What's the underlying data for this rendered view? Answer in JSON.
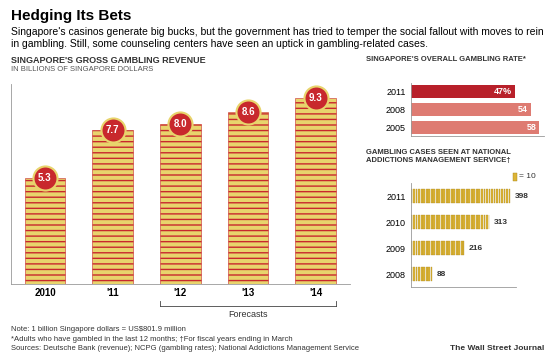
{
  "title": "Hedging Its Bets",
  "subtitle": "Singapore's casinos generate big bucks, but the government has tried to temper the social fallout with moves to rein in gambling. Still, some counseling centers have seen an uptick in gambling-related cases.",
  "notes": [
    "Note: 1 billion Singapore dollars = US$801.9 million",
    "*Adults who have gambled in the last 12 months; †For fiscal years ending in March",
    "Sources: Deutsche Bank (revenue); NCPG (gambling rates); National Addictions Management Service"
  ],
  "credit": "The Wall Street Journal",
  "chart_data": [
    {
      "type": "bar",
      "title": "SINGAPORE'S GROSS GAMBLING REVENUE",
      "subtitle": "IN BILLIONS OF SINGAPORE DOLLARS",
      "categories": [
        "2010",
        "'11",
        "'12",
        "'13",
        "'14"
      ],
      "values": [
        5.3,
        7.7,
        8.0,
        8.6,
        9.3
      ],
      "color": "#e8d46c",
      "data_labels": true,
      "tick_labels": "x",
      "ylim": [
        0,
        10
      ],
      "yticks": [],
      "annotation": {
        "text": "Forecasts",
        "from": "'12",
        "to": "'14"
      }
    },
    {
      "type": "bar",
      "orientation": "horizontal",
      "title": "SINGAPORE'S OVERALL GAMBLING RATE*",
      "categories": [
        "2011",
        "2008",
        "2005"
      ],
      "values": [
        47,
        54,
        58
      ],
      "value_labels": [
        "47%",
        "54",
        "58"
      ],
      "colors": [
        "#b8202a",
        "#de7b72",
        "#de7b72"
      ],
      "data_labels": true,
      "tick_labels": "y",
      "xlim": [
        0,
        60
      ],
      "xticks": []
    },
    {
      "type": "pictograph",
      "title": "GAMBLING CASES SEEN AT NATIONAL ADDICTIONS MANAGEMENT SERVICE†",
      "categories": [
        "2011",
        "2010",
        "2009",
        "2008"
      ],
      "values": [
        398,
        313,
        216,
        88
      ],
      "icon_value": 10,
      "icon_label": "= 10",
      "color": "#dcb437",
      "data_labels": true,
      "tick_labels": "y",
      "xlim": [
        0,
        420
      ],
      "xticks": []
    }
  ]
}
